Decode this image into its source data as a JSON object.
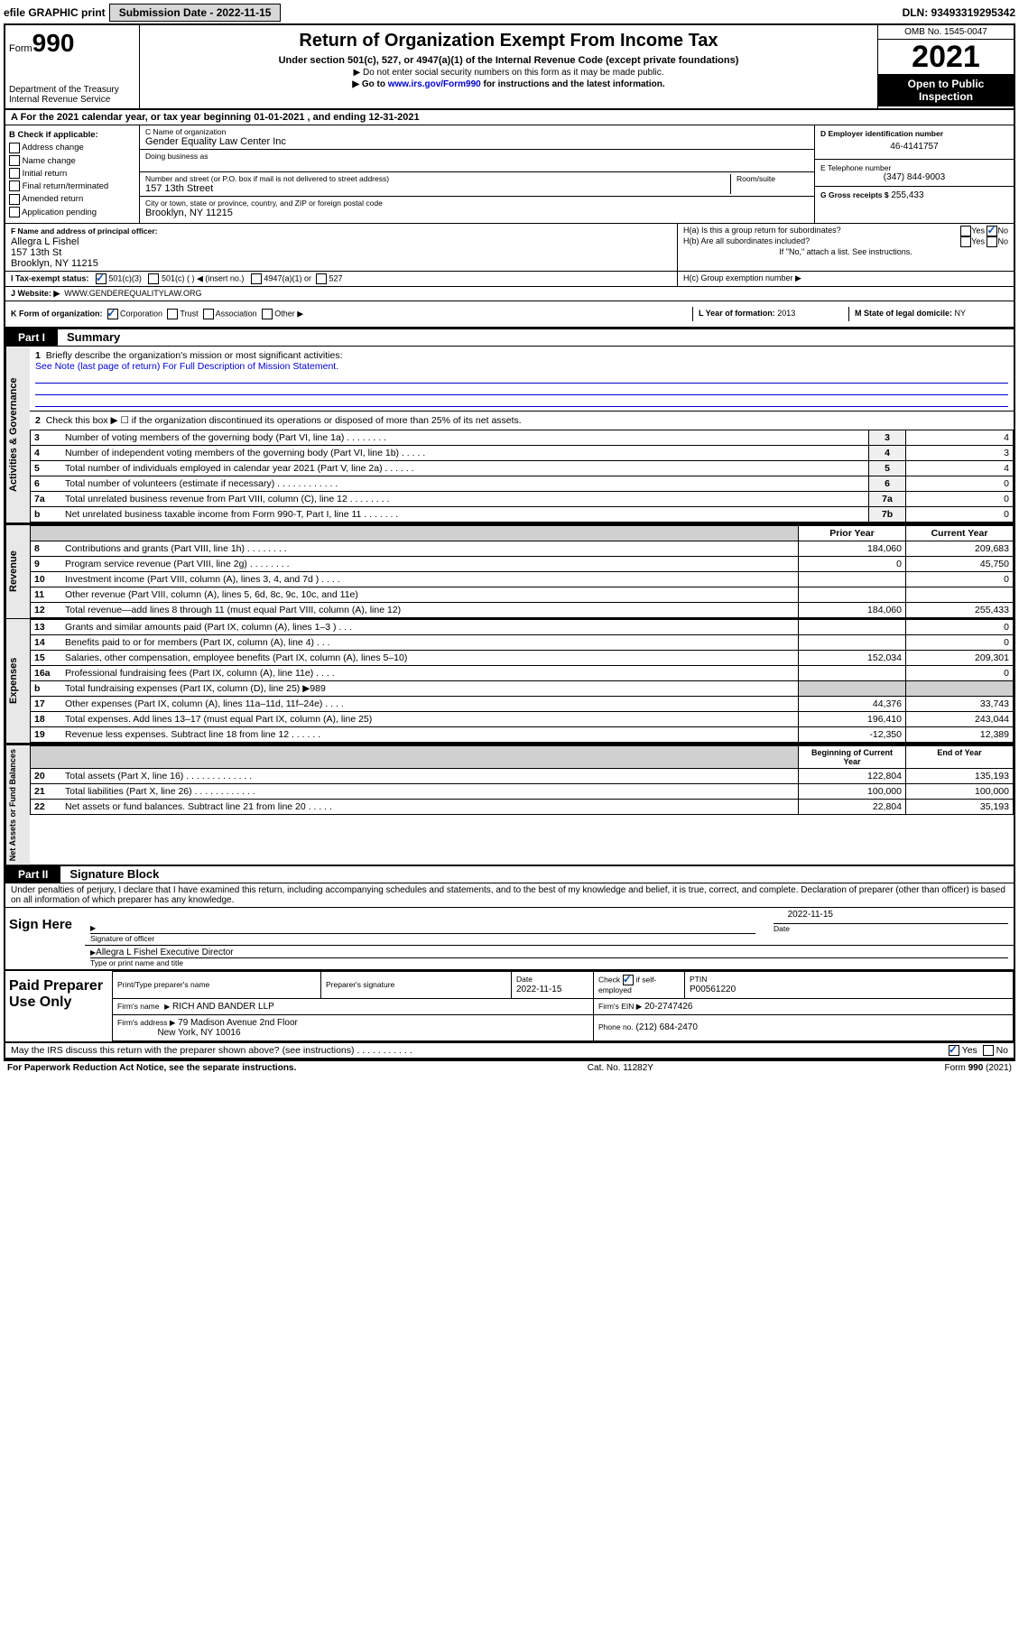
{
  "topbar": {
    "efile": "efile GRAPHIC print",
    "submission": "Submission Date - 2022-11-15",
    "dln": "DLN: 93493319295342"
  },
  "header": {
    "form_label": "Form",
    "form_number": "990",
    "dept": "Department of the Treasury Internal Revenue Service",
    "title": "Return of Organization Exempt From Income Tax",
    "subtitle": "Under section 501(c), 527, or 4947(a)(1) of the Internal Revenue Code (except private foundations)",
    "note1": "▶ Do not enter social security numbers on this form as it may be made public.",
    "note2_a": "▶ Go to ",
    "note2_link": "www.irs.gov/Form990",
    "note2_b": " for instructions and the latest information.",
    "omb": "OMB No. 1545-0047",
    "year": "2021",
    "open": "Open to Public Inspection"
  },
  "line_a": "A For the 2021 calendar year, or tax year beginning 01-01-2021   , and ending 12-31-2021",
  "box_b": {
    "title": "B Check if applicable:",
    "opts": [
      "Address change",
      "Name change",
      "Initial return",
      "Final return/terminated",
      "Amended return",
      "Application pending"
    ]
  },
  "box_c": {
    "name_lbl": "C Name of organization",
    "name": "Gender Equality Law Center Inc",
    "dba_lbl": "Doing business as",
    "street_lbl": "Number and street (or P.O. box if mail is not delivered to street address)",
    "room_lbl": "Room/suite",
    "street": "157 13th Street",
    "city_lbl": "City or town, state or province, country, and ZIP or foreign postal code",
    "city": "Brooklyn, NY  11215"
  },
  "box_d": {
    "lbl": "D Employer identification number",
    "val": "46-4141757"
  },
  "box_e": {
    "lbl": "E Telephone number",
    "val": "(347) 844-9003"
  },
  "box_g": {
    "lbl": "G Gross receipts $",
    "val": "255,433"
  },
  "box_f": {
    "lbl": "F Name and address of principal officer:",
    "l1": "Allegra L Fishel",
    "l2": "157 13th St",
    "l3": "Brooklyn, NY  11215"
  },
  "box_h": {
    "ha": "H(a)  Is this a group return for subordinates?",
    "hb": "H(b)  Are all subordinates included?",
    "hb_note": "If \"No,\" attach a list. See instructions.",
    "hc": "H(c)  Group exemption number ▶",
    "yes": "Yes",
    "no": "No"
  },
  "row_i": {
    "lbl": "I   Tax-exempt status:",
    "o1": "501(c)(3)",
    "o2": "501(c) (  ) ◀ (insert no.)",
    "o3": "4947(a)(1) or",
    "o4": "527"
  },
  "row_j": {
    "lbl": "J   Website: ▶",
    "val": "WWW.GENDEREQUALITYLAW.ORG"
  },
  "row_k": {
    "lbl": "K Form of organization:",
    "o1": "Corporation",
    "o2": "Trust",
    "o3": "Association",
    "o4": "Other ▶"
  },
  "row_l": {
    "lbl": "L Year of formation:",
    "val": "2013"
  },
  "row_m": {
    "lbl": "M State of legal domicile:",
    "val": "NY"
  },
  "part1": {
    "tab": "Part I",
    "title": "Summary"
  },
  "gov": {
    "l1": "Briefly describe the organization's mission or most significant activities:",
    "l1_link": "See Note (last page of return) For Full Description of Mission Statement.",
    "l2": "Check this box ▶ ☐  if the organization discontinued its operations or disposed of more than 25% of its net assets.",
    "rows": [
      {
        "n": "3",
        "d": "Number of voting members of the governing body (Part VI, line 1a)  .   .   .   .   .   .   .   .",
        "b": "3",
        "v": "4"
      },
      {
        "n": "4",
        "d": "Number of independent voting members of the governing body (Part VI, line 1b)  .   .   .   .   .",
        "b": "4",
        "v": "3"
      },
      {
        "n": "5",
        "d": "Total number of individuals employed in calendar year 2021 (Part V, line 2a)  .   .   .   .   .   .",
        "b": "5",
        "v": "4"
      },
      {
        "n": "6",
        "d": "Total number of volunteers (estimate if necessary)  .   .   .   .   .   .   .   .   .   .   .   .",
        "b": "6",
        "v": "0"
      },
      {
        "n": "7a",
        "d": "Total unrelated business revenue from Part VIII, column (C), line 12  .   .   .   .   .   .   .   .",
        "b": "7a",
        "v": "0"
      },
      {
        "n": "b",
        "d": "Net unrelated business taxable income from Form 990-T, Part I, line 11  .   .   .   .   .   .   .",
        "b": "7b",
        "v": "0"
      }
    ]
  },
  "cols": {
    "prior": "Prior Year",
    "current": "Current Year",
    "begin": "Beginning of Current Year",
    "end": "End of Year"
  },
  "rev_rows": [
    {
      "n": "8",
      "d": "Contributions and grants (Part VIII, line 1h)   .   .   .   .   .   .   .   .",
      "p": "184,060",
      "c": "209,683"
    },
    {
      "n": "9",
      "d": "Program service revenue (Part VIII, line 2g)   .   .   .   .   .   .   .   .",
      "p": "0",
      "c": "45,750"
    },
    {
      "n": "10",
      "d": "Investment income (Part VIII, column (A), lines 3, 4, and 7d )   .   .   .   .",
      "p": "",
      "c": "0"
    },
    {
      "n": "11",
      "d": "Other revenue (Part VIII, column (A), lines 5, 6d, 8c, 9c, 10c, and 11e)",
      "p": "",
      "c": ""
    },
    {
      "n": "12",
      "d": "Total revenue—add lines 8 through 11 (must equal Part VIII, column (A), line 12)",
      "p": "184,060",
      "c": "255,433"
    }
  ],
  "exp_rows": [
    {
      "n": "13",
      "d": "Grants and similar amounts paid (Part IX, column (A), lines 1–3 )   .   .   .",
      "p": "",
      "c": "0"
    },
    {
      "n": "14",
      "d": "Benefits paid to or for members (Part IX, column (A), line 4)   .   .   .",
      "p": "",
      "c": "0"
    },
    {
      "n": "15",
      "d": "Salaries, other compensation, employee benefits (Part IX, column (A), lines 5–10)",
      "p": "152,034",
      "c": "209,301"
    },
    {
      "n": "16a",
      "d": "Professional fundraising fees (Part IX, column (A), line 11e)   .   .   .   .",
      "p": "",
      "c": "0"
    },
    {
      "n": "b",
      "d": "Total fundraising expenses (Part IX, column (D), line 25) ▶989",
      "p": "shade",
      "c": "shade"
    },
    {
      "n": "17",
      "d": "Other expenses (Part IX, column (A), lines 11a–11d, 11f–24e)   .   .   .   .",
      "p": "44,376",
      "c": "33,743"
    },
    {
      "n": "18",
      "d": "Total expenses. Add lines 13–17 (must equal Part IX, column (A), line 25)",
      "p": "196,410",
      "c": "243,044"
    },
    {
      "n": "19",
      "d": "Revenue less expenses. Subtract line 18 from line 12   .   .   .   .   .   .",
      "p": "-12,350",
      "c": "12,389"
    }
  ],
  "net_rows": [
    {
      "n": "20",
      "d": "Total assets (Part X, line 16)   .   .   .   .   .   .   .   .   .   .   .   .   .",
      "p": "122,804",
      "c": "135,193"
    },
    {
      "n": "21",
      "d": "Total liabilities (Part X, line 26)   .   .   .   .   .   .   .   .   .   .   .   .",
      "p": "100,000",
      "c": "100,000"
    },
    {
      "n": "22",
      "d": "Net assets or fund balances. Subtract line 21 from line 20   .   .   .   .   .",
      "p": "22,804",
      "c": "35,193"
    }
  ],
  "vlabels": {
    "gov": "Activities & Governance",
    "rev": "Revenue",
    "exp": "Expenses",
    "net": "Net Assets or Fund Balances"
  },
  "part2": {
    "tab": "Part II",
    "title": "Signature Block"
  },
  "sig": {
    "perjury": "Under penalties of perjury, I declare that I have examined this return, including accompanying schedules and statements, and to the best of my knowledge and belief, it is true, correct, and complete. Declaration of preparer (other than officer) is based on all information of which preparer has any knowledge.",
    "here": "Sign Here",
    "off_lbl": "Signature of officer",
    "date_lbl": "Date",
    "date": "2022-11-15",
    "name": "Allegra L Fishel  Executive Director",
    "name_lbl": "Type or print name and title"
  },
  "prep": {
    "title": "Paid Preparer Use Only",
    "h1": "Print/Type preparer's name",
    "h2": "Preparer's signature",
    "h3": "Date",
    "h3v": "2022-11-15",
    "h4a": "Check",
    "h4b": "if self-employed",
    "h5": "PTIN",
    "h5v": "P00561220",
    "firm_lbl": "Firm's name",
    "firm": "RICH AND BANDER LLP",
    "ein_lbl": "Firm's EIN ▶",
    "ein": "20-2747426",
    "addr_lbl": "Firm's address ▶",
    "addr1": "79 Madison Avenue 2nd Floor",
    "addr2": "New York, NY  10016",
    "phone_lbl": "Phone no.",
    "phone": "(212) 684-2470"
  },
  "discuss": "May the IRS discuss this return with the preparer shown above? (see instructions)   .   .   .   .   .   .   .   .   .   .   .",
  "footer": {
    "l": "For Paperwork Reduction Act Notice, see the separate instructions.",
    "m": "Cat. No. 11282Y",
    "r": "Form 990 (2021)"
  }
}
